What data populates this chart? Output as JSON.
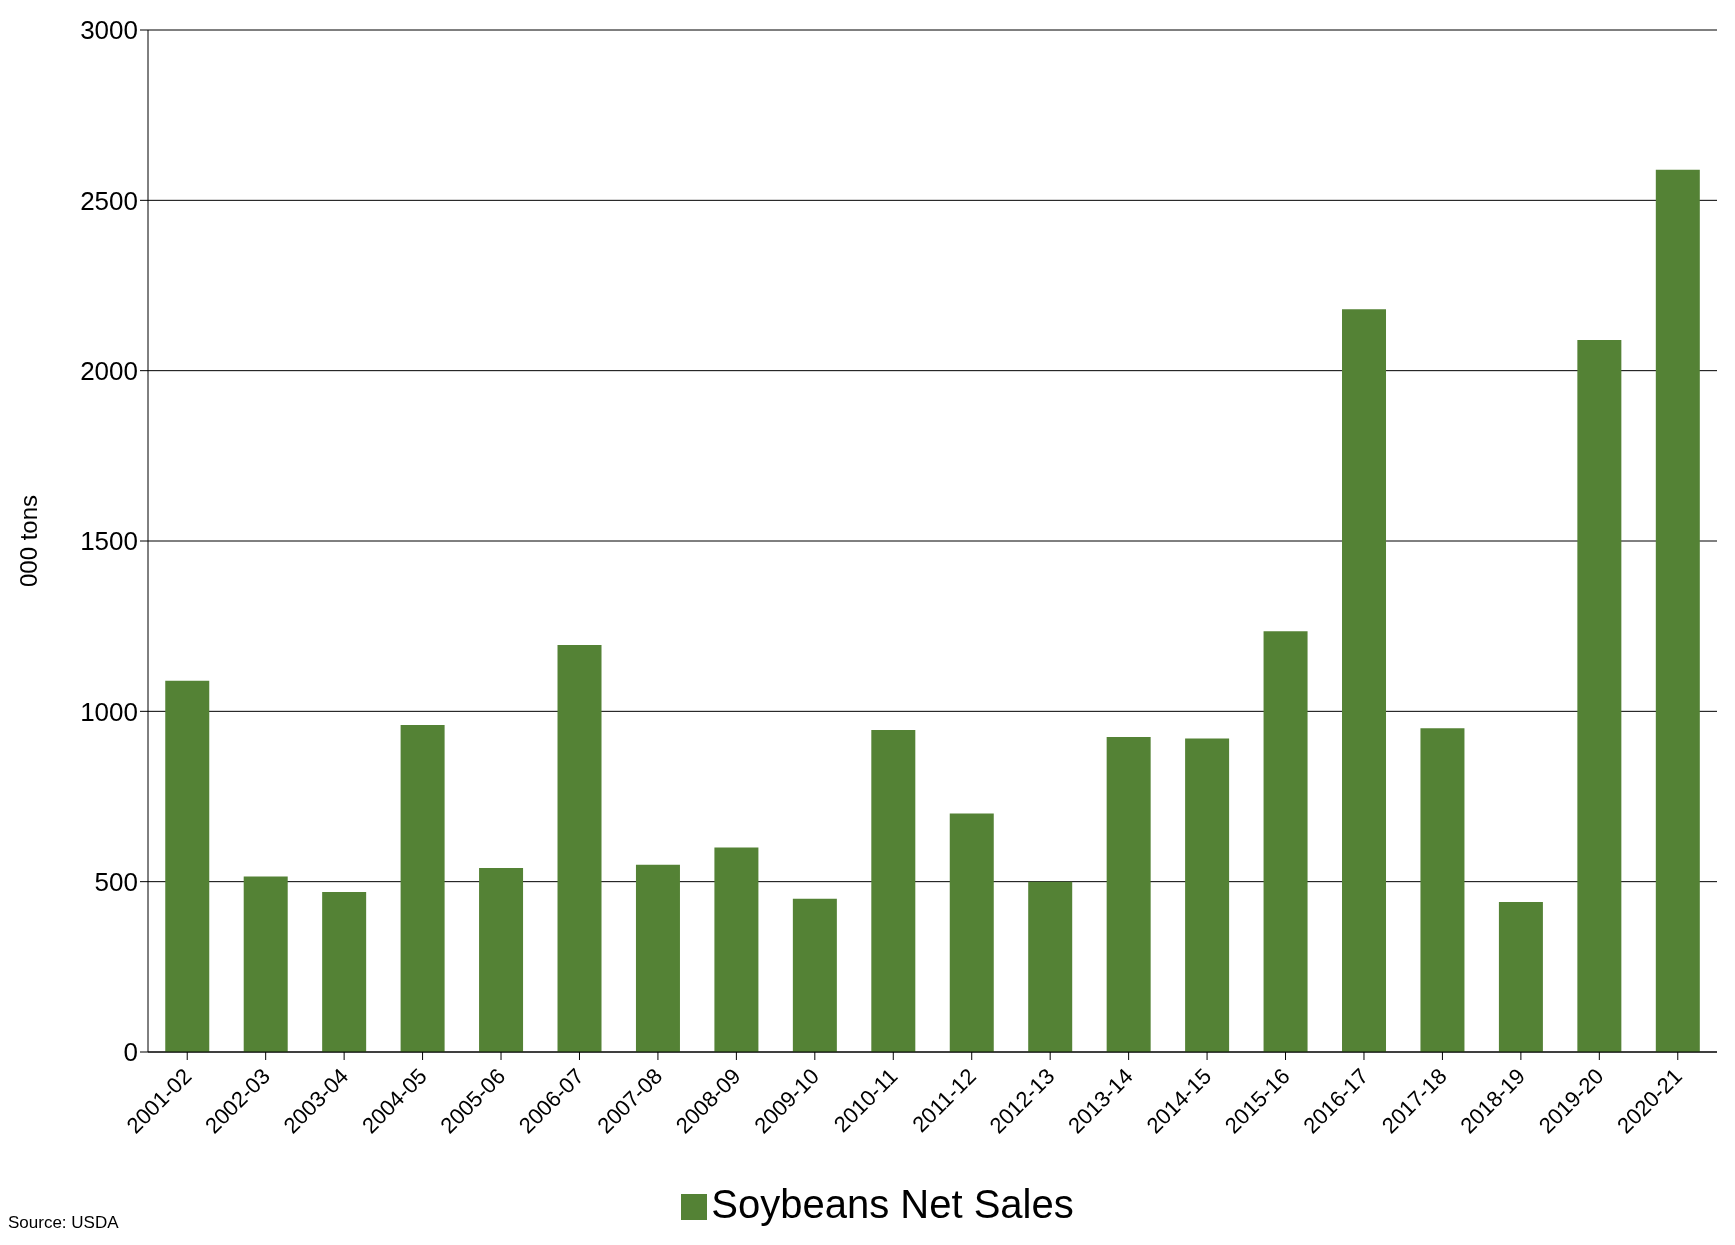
{
  "chart_data": {
    "type": "bar",
    "ylabel": "000 tons",
    "categories": [
      "2001-02",
      "2002-03",
      "2003-04",
      "2004-05",
      "2005-06",
      "2006-07",
      "2007-08",
      "2008-09",
      "2009-10",
      "2010-11",
      "2011-12",
      "2012-13",
      "2013-14",
      "2014-15",
      "2015-16",
      "2016-17",
      "2017-18",
      "2018-19",
      "2019-20",
      "2020-21"
    ],
    "series": [
      {
        "name": "Soybeans Net Sales",
        "color": "#548235",
        "values": [
          1090,
          515,
          470,
          960,
          540,
          1195,
          550,
          600,
          450,
          945,
          700,
          500,
          925,
          920,
          1235,
          2180,
          950,
          440,
          2090,
          2590
        ]
      }
    ],
    "ylim": [
      0,
      3000
    ],
    "yticks": [
      0,
      500,
      1000,
      1500,
      2000,
      2500,
      3000
    ],
    "grid": "y",
    "legend": "bottom",
    "annotations": [
      "Source: USDA"
    ]
  }
}
